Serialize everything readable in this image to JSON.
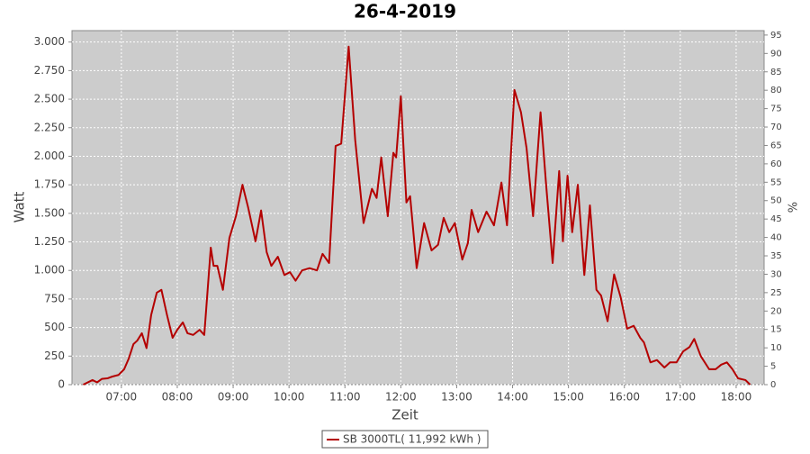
{
  "chart_data": {
    "type": "line",
    "title": "26-4-2019",
    "x_label": "Zeit",
    "y_label": "Watt",
    "y2_label": "%",
    "x": [
      "06:19",
      "06:29",
      "06:34",
      "06:39",
      "06:45",
      "06:50",
      "06:57",
      "07:03",
      "07:08",
      "07:13",
      "07:17",
      "07:22",
      "07:27",
      "07:32",
      "07:38",
      "07:43",
      "07:49",
      "07:55",
      "08:00",
      "08:06",
      "08:11",
      "08:17",
      "08:24",
      "08:29",
      "08:36",
      "08:39",
      "08:43",
      "08:49",
      "08:56",
      "09:03",
      "09:10",
      "09:16",
      "09:24",
      "09:30",
      "09:36",
      "09:41",
      "09:48",
      "09:55",
      "10:01",
      "10:07",
      "10:14",
      "10:22",
      "10:30",
      "10:36",
      "10:43",
      "10:50",
      "10:56",
      "11:04",
      "11:11",
      "11:20",
      "11:29",
      "11:34",
      "11:39",
      "11:46",
      "11:52",
      "11:55",
      "12:00",
      "12:06",
      "12:10",
      "12:17",
      "12:25",
      "12:33",
      "12:40",
      "12:46",
      "12:52",
      "12:58",
      "13:06",
      "13:12",
      "13:16",
      "13:23",
      "13:32",
      "13:40",
      "13:48",
      "13:54",
      "14:02",
      "14:09",
      "14:15",
      "14:22",
      "14:30",
      "14:36",
      "14:43",
      "14:50",
      "14:54",
      "14:59",
      "15:04",
      "15:10",
      "15:17",
      "15:23",
      "15:30",
      "15:35",
      "15:42",
      "15:49",
      "15:56",
      "16:03",
      "16:10",
      "16:17",
      "16:21",
      "16:28",
      "16:35",
      "16:43",
      "16:49",
      "16:56",
      "17:03",
      "17:10",
      "17:15",
      "17:22",
      "17:31",
      "17:38",
      "17:44",
      "17:50",
      "17:56",
      "18:02",
      "18:10",
      "18:15"
    ],
    "series": [
      {
        "name": "SB 3000TL( 11,992 kWh )",
        "color": "#b40000",
        "values": [
          0,
          40,
          20,
          50,
          55,
          70,
          85,
          135,
          230,
          355,
          385,
          450,
          320,
          610,
          805,
          830,
          610,
          410,
          480,
          545,
          450,
          435,
          480,
          435,
          1200,
          1040,
          1040,
          830,
          1285,
          1475,
          1750,
          1555,
          1255,
          1525,
          1160,
          1040,
          1120,
          960,
          985,
          910,
          1000,
          1020,
          1000,
          1145,
          1065,
          2090,
          2110,
          2960,
          2145,
          1415,
          1715,
          1635,
          1990,
          1475,
          2030,
          1990,
          2525,
          1595,
          1650,
          1020,
          1415,
          1175,
          1225,
          1460,
          1335,
          1415,
          1095,
          1240,
          1530,
          1335,
          1515,
          1395,
          1770,
          1395,
          2580,
          2385,
          2070,
          1475,
          2385,
          1750,
          1065,
          1870,
          1255,
          1830,
          1335,
          1750,
          960,
          1570,
          830,
          780,
          555,
          965,
          765,
          490,
          515,
          410,
          370,
          195,
          215,
          150,
          195,
          195,
          290,
          330,
          400,
          250,
          135,
          135,
          175,
          195,
          135,
          55,
          40,
          0
        ]
      }
    ],
    "xlim": [
      "06:07",
      "18:30"
    ],
    "xticks": [
      "07:00",
      "08:00",
      "09:00",
      "10:00",
      "11:00",
      "12:00",
      "13:00",
      "14:00",
      "15:00",
      "16:00",
      "17:00",
      "18:00"
    ],
    "ylim": [
      0,
      3100
    ],
    "yticks": [
      0,
      250,
      {
        "value": 500,
        "label": "500"
      },
      750,
      {
        "value": 1000,
        "label": "1.000"
      },
      {
        "value": 1250,
        "label": "1.250"
      },
      {
        "value": 1500,
        "label": "1.500"
      },
      {
        "value": 1750,
        "label": "1.750"
      },
      {
        "value": 2000,
        "label": "2.000"
      },
      {
        "value": 2250,
        "label": "2.250"
      },
      {
        "value": 2500,
        "label": "2.500"
      },
      {
        "value": 2750,
        "label": "2.750"
      },
      {
        "value": 3000,
        "label": "3.000"
      }
    ],
    "y2lim": [
      0,
      96.2
    ],
    "y2ticks": [
      0,
      5,
      10,
      15,
      20,
      25,
      30,
      35,
      40,
      45,
      50,
      55,
      60,
      65,
      70,
      75,
      80,
      85,
      90,
      95
    ],
    "grid": true
  }
}
